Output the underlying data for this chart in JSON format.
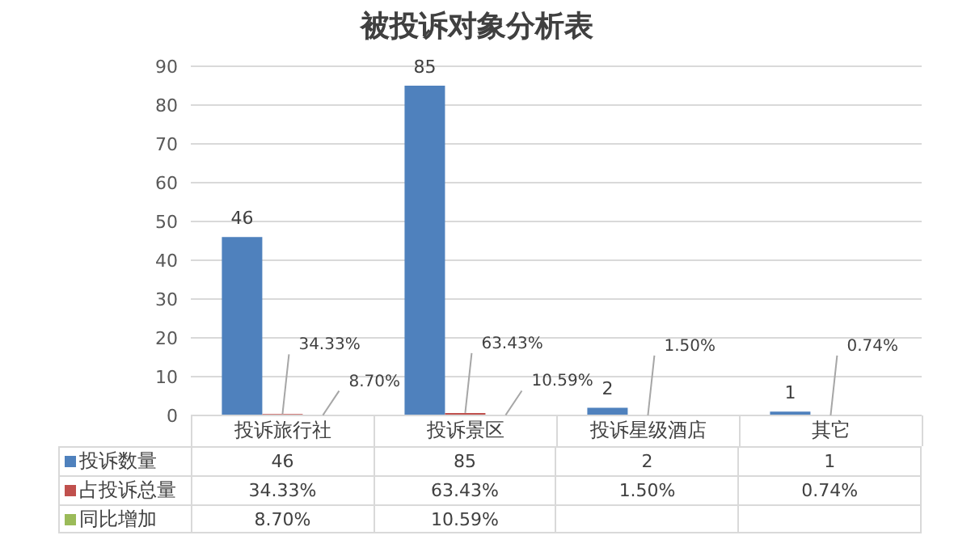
{
  "chart_data": {
    "type": "bar",
    "title": "被投诉对象分析表",
    "categories": [
      "投诉旅行社",
      "投诉景区",
      "投诉星级酒店",
      "其它"
    ],
    "series": [
      {
        "name": "投诉数量",
        "color": "#4f81bd",
        "values": [
          46,
          85,
          2,
          1
        ],
        "value_labels": [
          "46",
          "85",
          "2",
          "1"
        ]
      },
      {
        "name": "占投诉总量",
        "color": "#c0504d",
        "values": [
          0.3433,
          0.6343,
          0.015,
          0.0074
        ],
        "value_labels": [
          "34.33%",
          "63.43%",
          "1.50%",
          "0.74%"
        ]
      },
      {
        "name": "同比增加",
        "color": "#9bbb59",
        "values": [
          0.087,
          0.1059,
          null,
          null
        ],
        "value_labels": [
          "8.70%",
          "10.59%",
          null,
          null
        ]
      }
    ],
    "ylim": [
      0,
      90
    ],
    "yticks": [
      0,
      10,
      20,
      30,
      40,
      50,
      60,
      70,
      80,
      90
    ],
    "grid": "y",
    "legend": "bottom"
  }
}
